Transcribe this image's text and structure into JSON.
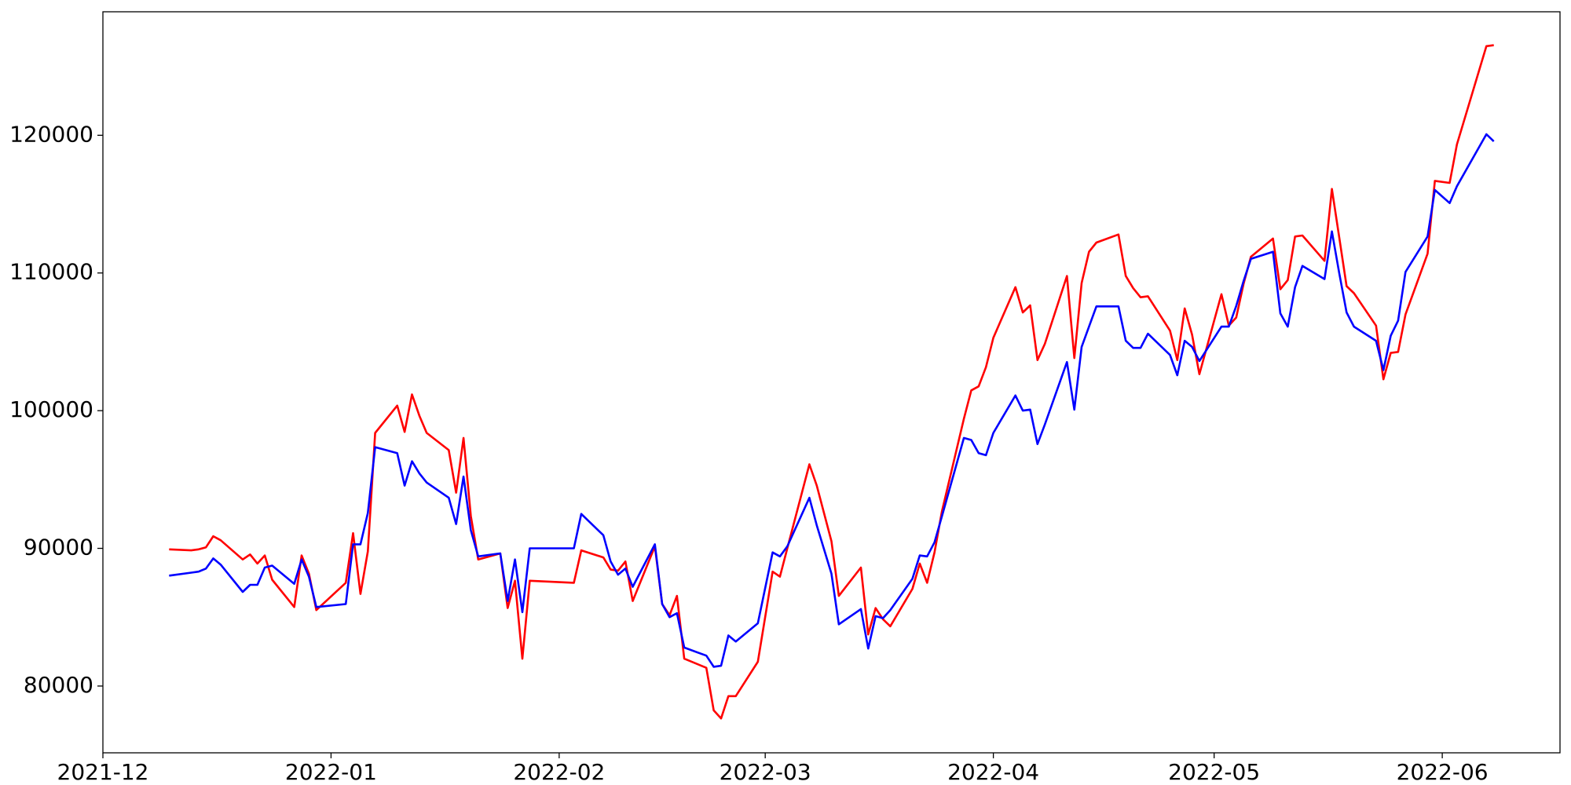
{
  "chart_data": {
    "type": "line",
    "x": [
      "2021-12-10",
      "2021-12-13",
      "2021-12-14",
      "2021-12-15",
      "2021-12-16",
      "2021-12-17",
      "2021-12-20",
      "2021-12-21",
      "2021-12-22",
      "2021-12-23",
      "2021-12-24",
      "2021-12-27",
      "2021-12-28",
      "2021-12-29",
      "2021-12-30",
      "2022-01-03",
      "2022-01-04",
      "2022-01-05",
      "2022-01-06",
      "2022-01-07",
      "2022-01-10",
      "2022-01-11",
      "2022-01-12",
      "2022-01-13",
      "2022-01-14",
      "2022-01-17",
      "2022-01-18",
      "2022-01-19",
      "2022-01-20",
      "2022-01-21",
      "2022-01-24",
      "2022-01-25",
      "2022-01-26",
      "2022-01-27",
      "2022-01-28",
      "2022-02-03",
      "2022-02-04",
      "2022-02-07",
      "2022-02-08",
      "2022-02-09",
      "2022-02-10",
      "2022-02-11",
      "2022-02-14",
      "2022-02-15",
      "2022-02-16",
      "2022-02-17",
      "2022-02-18",
      "2022-02-21",
      "2022-02-22",
      "2022-02-23",
      "2022-02-24",
      "2022-02-25",
      "2022-02-28",
      "2022-03-02",
      "2022-03-03",
      "2022-03-04",
      "2022-03-07",
      "2022-03-08",
      "2022-03-10",
      "2022-03-11",
      "2022-03-14",
      "2022-03-15",
      "2022-03-16",
      "2022-03-17",
      "2022-03-18",
      "2022-03-21",
      "2022-03-22",
      "2022-03-23",
      "2022-03-24",
      "2022-03-25",
      "2022-03-28",
      "2022-03-29",
      "2022-03-30",
      "2022-03-31",
      "2022-04-01",
      "2022-04-04",
      "2022-04-05",
      "2022-04-06",
      "2022-04-07",
      "2022-04-08",
      "2022-04-11",
      "2022-04-12",
      "2022-04-13",
      "2022-04-14",
      "2022-04-15",
      "2022-04-18",
      "2022-04-19",
      "2022-04-20",
      "2022-04-21",
      "2022-04-22",
      "2022-04-25",
      "2022-04-26",
      "2022-04-27",
      "2022-04-28",
      "2022-04-29",
      "2022-05-02",
      "2022-05-03",
      "2022-05-04",
      "2022-05-05",
      "2022-05-06",
      "2022-05-09",
      "2022-05-10",
      "2022-05-11",
      "2022-05-12",
      "2022-05-13",
      "2022-05-16",
      "2022-05-17",
      "2022-05-18",
      "2022-05-19",
      "2022-05-20",
      "2022-05-23",
      "2022-05-24",
      "2022-05-25",
      "2022-05-26",
      "2022-05-27",
      "2022-05-30",
      "2022-05-31",
      "2022-06-02",
      "2022-06-03",
      "2022-06-07",
      "2022-06-08"
    ],
    "series": [
      {
        "color": "#ff0000",
        "values": [
          89926,
          89853,
          89926,
          90074,
          90882,
          90588,
          89191,
          89559,
          88897,
          89485,
          87721,
          85735,
          89485,
          88162,
          85515,
          87500,
          91103,
          86691,
          89779,
          98382,
          100368,
          98456,
          101176,
          99632,
          98382,
          97132,
          94044,
          98015,
          92353,
          89191,
          89632,
          85662,
          87647,
          81985,
          87647,
          87500,
          89853,
          89338,
          88456,
          88382,
          89044,
          86176,
          90147,
          85956,
          85147,
          86544,
          81985,
          81324,
          78235,
          77647,
          79265,
          79265,
          81765,
          88309,
          87941,
          90000,
          96103,
          94559,
          90515,
          86544,
          88603,
          83750,
          85662,
          84853,
          84338,
          87059,
          88897,
          87500,
          89706,
          92647,
          99412,
          101471,
          101765,
          103162,
          105294,
          108971,
          107132,
          107647,
          103676,
          104853,
          109779,
          103824,
          109265,
          111544,
          112206,
          112794,
          109779,
          108897,
          108235,
          108309,
          105809,
          103676,
          107426,
          105515,
          102647,
          108456,
          106176,
          106765,
          109200,
          111176,
          112500,
          108824,
          109485,
          112647,
          112721,
          110882,
          116103,
          112600,
          109044,
          108529,
          106176,
          102279,
          104191,
          104265,
          106985,
          111397,
          116691,
          116544,
          119338,
          126471,
          126544
        ]
      },
      {
        "color": "#0000ff",
        "values": [
          88015,
          88235,
          88309,
          88529,
          89265,
          88824,
          86838,
          87353,
          87353,
          88603,
          88750,
          87426,
          89191,
          87941,
          85735,
          85956,
          90294,
          90294,
          92574,
          97353,
          96912,
          94559,
          96324,
          95441,
          94779,
          93676,
          91765,
          95221,
          91324,
          89412,
          89632,
          86176,
          89191,
          85368,
          90000,
          90000,
          92500,
          90956,
          89044,
          88088,
          88529,
          87206,
          90294,
          85956,
          85000,
          85294,
          82794,
          82206,
          81397,
          81471,
          83676,
          83235,
          84559,
          89706,
          89412,
          90147,
          93676,
          91670,
          88162,
          84485,
          85588,
          82721,
          85074,
          84926,
          85515,
          87794,
          89485,
          89412,
          90441,
          92300,
          98015,
          97868,
          96912,
          96765,
          98382,
          101103,
          100000,
          100074,
          97574,
          99000,
          103529,
          100074,
          104632,
          106100,
          107574,
          107574,
          105074,
          104559,
          104559,
          105588,
          104044,
          102574,
          105074,
          104632,
          103603,
          106103,
          106103,
          107600,
          109400,
          111029,
          111544,
          107059,
          106103,
          108971,
          110515,
          109559,
          113015,
          110000,
          107132,
          106103,
          105074,
          102941,
          105441,
          106544,
          110074,
          112647,
          116029,
          115074,
          116300,
          120074,
          119559
        ]
      }
    ],
    "xlim": [
      "2021-12-01",
      "2022-06-17"
    ],
    "xticks": [
      "2021-12",
      "2022-01",
      "2022-02",
      "2022-03",
      "2022-04",
      "2022-05",
      "2022-06"
    ],
    "ylim": [
      75150,
      128970
    ],
    "yticks": [
      80000,
      90000,
      100000,
      110000,
      120000
    ],
    "grid": false
  }
}
